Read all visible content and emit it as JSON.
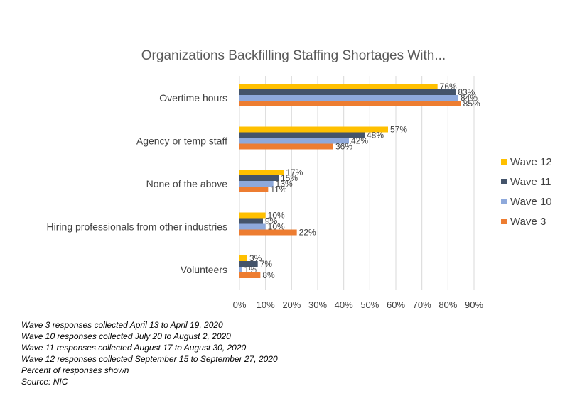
{
  "chart_data": {
    "type": "bar",
    "orientation": "horizontal",
    "title": "Organizations Backfilling Staffing Shortages With...",
    "categories": [
      "Overtime hours",
      "Agency or temp staff",
      "None of the above",
      "Hiring professionals from other industries",
      "Volunteers"
    ],
    "series": [
      {
        "name": "Wave 12",
        "color": "#FFC000",
        "values": [
          76,
          57,
          17,
          10,
          3
        ]
      },
      {
        "name": "Wave 11",
        "color": "#44546A",
        "values": [
          83,
          48,
          15,
          9,
          7
        ]
      },
      {
        "name": "Wave 10",
        "color": "#8EA9DB",
        "values": [
          84,
          42,
          13,
          10,
          1
        ]
      },
      {
        "name": "Wave 3",
        "color": "#ED7D31",
        "values": [
          85,
          36,
          11,
          22,
          8
        ]
      }
    ],
    "xlim": [
      0,
      90
    ],
    "xticks": [
      "0%",
      "10%",
      "20%",
      "30%",
      "40%",
      "50%",
      "60%",
      "70%",
      "80%",
      "90%"
    ],
    "value_suffix": "%",
    "grid": true,
    "legend_position": "right"
  },
  "notes": [
    "Wave 3 responses collected April 13 to April 19, 2020",
    "Wave 10 responses collected July 20 to August 2, 2020",
    "Wave 11 responses collected August 17 to August 30, 2020",
    "Wave 12 responses collected September 15 to September 27, 2020",
    "Percent of responses shown",
    "Source: NIC"
  ]
}
